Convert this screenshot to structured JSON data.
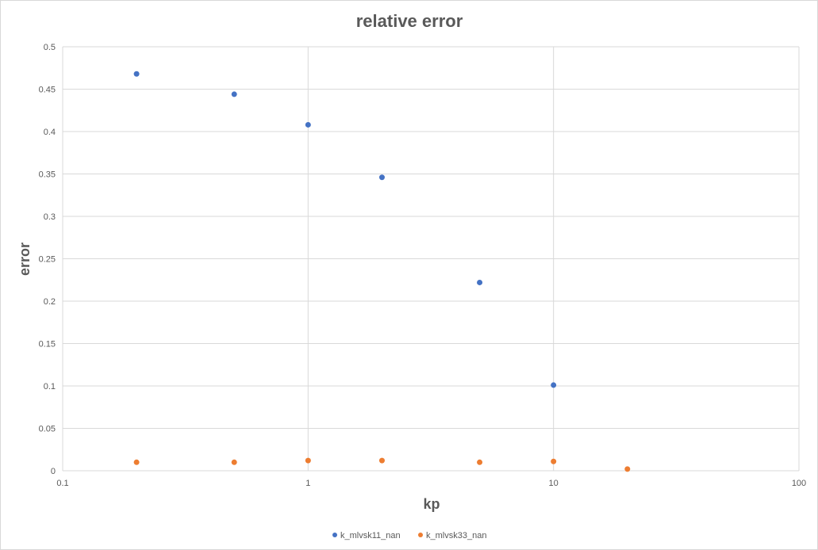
{
  "chart_data": {
    "type": "scatter",
    "title": "relative error",
    "xlabel": "kp",
    "ylabel": "error",
    "x_scale": "log",
    "xlim": [
      0.1,
      100
    ],
    "ylim": [
      0,
      0.5
    ],
    "x_ticks": [
      "0.1",
      "1",
      "10",
      "100"
    ],
    "y_ticks": [
      "0",
      "0.05",
      "0.1",
      "0.15",
      "0.2",
      "0.25",
      "0.3",
      "0.35",
      "0.4",
      "0.45",
      "0.5"
    ],
    "grid": true,
    "legend_position": "bottom",
    "series": [
      {
        "name": "k_mlvsk11_nan",
        "color": "#4472c4",
        "x": [
          0.2,
          0.5,
          1,
          2,
          5,
          10
        ],
        "y": [
          0.468,
          0.444,
          0.408,
          0.346,
          0.222,
          0.101
        ]
      },
      {
        "name": "k_mlvsk33_nan",
        "color": "#ed7d31",
        "x": [
          0.2,
          0.5,
          1,
          2,
          5,
          10,
          20
        ],
        "y": [
          0.01,
          0.01,
          0.012,
          0.012,
          0.01,
          0.011,
          0.002
        ]
      }
    ]
  }
}
